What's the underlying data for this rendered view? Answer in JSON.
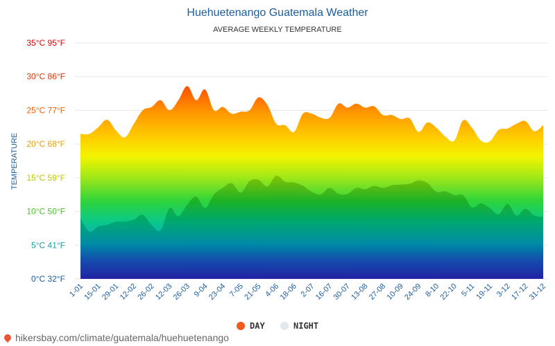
{
  "page": {
    "source": "hikersbay.com/climate/guatemala/huehuetenango"
  },
  "chart_data": {
    "type": "area",
    "title": "Huehuetenango Guatemala Weather",
    "subtitle": "AVERAGE WEEKLY TEMPERATURE",
    "ylabel": "TEMPERATURE",
    "ylim": [
      0,
      35
    ],
    "yticks": [
      {
        "value": 0,
        "label": "0°C 32°F",
        "color": "#1a5c9e"
      },
      {
        "value": 5,
        "label": "5°C 41°F",
        "color": "#1a9e9e"
      },
      {
        "value": 10,
        "label": "10°C 50°F",
        "color": "#4cbf2a"
      },
      {
        "value": 15,
        "label": "15°C 59°F",
        "color": "#b8c800"
      },
      {
        "value": 20,
        "label": "20°C 68°F",
        "color": "#e8a000"
      },
      {
        "value": 25,
        "label": "25°C 77°F",
        "color": "#f06000"
      },
      {
        "value": 30,
        "label": "30°C 86°F",
        "color": "#e83000"
      },
      {
        "value": 35,
        "label": "35°C 95°F",
        "color": "#e80000"
      }
    ],
    "x": [
      "1-01",
      "8-01",
      "15-01",
      "22-01",
      "29-01",
      "5-02",
      "12-02",
      "19-02",
      "26-02",
      "5-03",
      "12-03",
      "19-03",
      "26-03",
      "2-04",
      "9-04",
      "16-04",
      "23-04",
      "30-04",
      "7-05",
      "14-05",
      "21-05",
      "28-05",
      "4-06",
      "11-06",
      "18-06",
      "25-06",
      "2-07",
      "9-07",
      "16-07",
      "23-07",
      "30-07",
      "6-08",
      "13-08",
      "20-08",
      "27-08",
      "3-09",
      "10-09",
      "17-09",
      "24-09",
      "1-10",
      "8-10",
      "15-10",
      "22-10",
      "29-10",
      "5-11",
      "12-11",
      "19-11",
      "26-11",
      "3-12",
      "10-12",
      "17-12",
      "24-12",
      "31-12"
    ],
    "xtick_labels": [
      "1-01",
      "15-01",
      "29-01",
      "12-02",
      "26-02",
      "12-03",
      "26-03",
      "9-04",
      "23-04",
      "7-05",
      "21-05",
      "4-06",
      "18-06",
      "2-07",
      "16-07",
      "30-07",
      "13-08",
      "27-08",
      "10-09",
      "24-09",
      "8-10",
      "22-10",
      "5-11",
      "19-11",
      "3-12",
      "17-12",
      "31-12"
    ],
    "series": [
      {
        "name": "DAY",
        "color": "#f05a1a",
        "values": [
          21.5,
          21.5,
          22.5,
          23.6,
          22.0,
          21.0,
          23.0,
          25.0,
          25.5,
          26.5,
          25.0,
          26.5,
          28.6,
          26.5,
          28.1,
          25.0,
          25.5,
          24.5,
          24.8,
          25.0,
          26.9,
          25.8,
          23.0,
          22.8,
          21.8,
          24.5,
          24.5,
          23.9,
          23.9,
          26.0,
          25.4,
          26.0,
          25.4,
          25.6,
          24.3,
          24.3,
          23.7,
          23.8,
          21.8,
          23.2,
          22.4,
          21.1,
          20.5,
          23.5,
          22.4,
          20.5,
          20.4,
          22.1,
          22.3,
          23.0,
          23.4,
          21.9,
          22.8
        ]
      },
      {
        "name": "NIGHT",
        "color": "#e8ecf2",
        "values": [
          9.0,
          7.0,
          7.8,
          8.0,
          8.5,
          8.5,
          8.8,
          9.5,
          8.0,
          7.2,
          10.5,
          9.3,
          11.0,
          12.2,
          10.5,
          12.5,
          13.5,
          14.2,
          12.8,
          14.5,
          14.7,
          13.7,
          15.3,
          14.4,
          14.3,
          13.8,
          12.9,
          12.5,
          13.5,
          12.6,
          12.6,
          13.5,
          13.3,
          13.8,
          13.5,
          13.9,
          14.0,
          14.1,
          14.6,
          14.2,
          12.9,
          13.0,
          12.4,
          12.4,
          10.6,
          11.2,
          10.5,
          9.6,
          11.1,
          9.4,
          10.4,
          9.4,
          9.2
        ]
      }
    ],
    "grid": true,
    "legend_placement": "bottom"
  }
}
